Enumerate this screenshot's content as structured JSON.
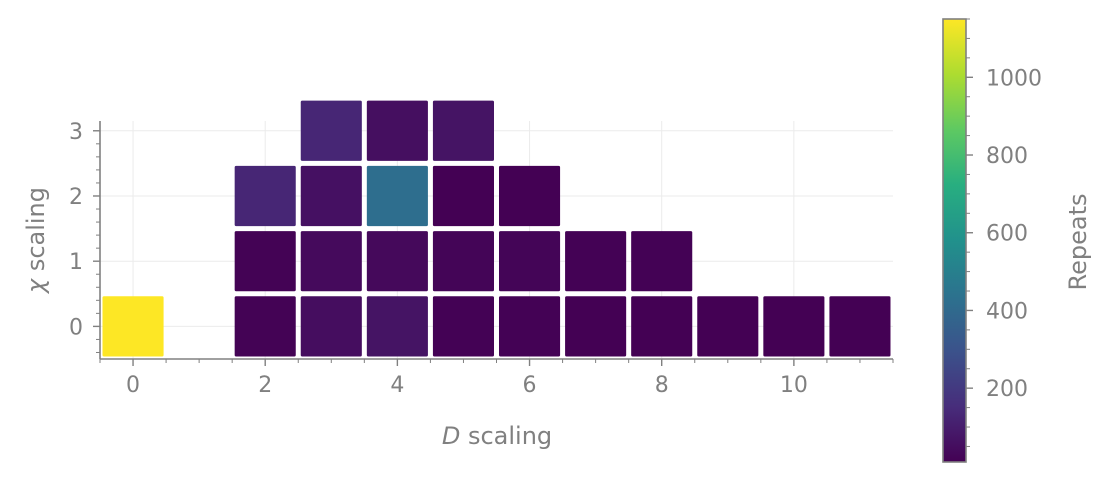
{
  "chart_data": {
    "type": "heatmap",
    "title": "",
    "xlabel_var": "D",
    "xlabel_rest": " scaling",
    "ylabel_var": "χ",
    "ylabel_rest": " scaling",
    "xlim": [
      -0.5,
      11.5
    ],
    "ylim": [
      -0.5,
      3.15
    ],
    "xticks": [
      "0",
      "2",
      "4",
      "6",
      "8",
      "10"
    ],
    "xtick_values": [
      0,
      2,
      4,
      6,
      8,
      10
    ],
    "yticks": [
      "0",
      "1",
      "2",
      "3"
    ],
    "ytick_values": [
      0,
      1,
      2,
      3
    ],
    "grid": true,
    "colormap": "viridis",
    "colorbar": {
      "label": "Repeats",
      "range": [
        10,
        1150
      ],
      "ticks": [
        "200",
        "400",
        "600",
        "800",
        "1000"
      ],
      "tick_values": [
        200,
        400,
        600,
        800,
        1000
      ],
      "placement": "right"
    },
    "cells": [
      {
        "x": 0,
        "y": 0,
        "value": 1150
      },
      {
        "x": 2,
        "y": 0,
        "value": 15
      },
      {
        "x": 3,
        "y": 0,
        "value": 50
      },
      {
        "x": 4,
        "y": 0,
        "value": 70
      },
      {
        "x": 5,
        "y": 0,
        "value": 12
      },
      {
        "x": 6,
        "y": 0,
        "value": 12
      },
      {
        "x": 7,
        "y": 0,
        "value": 10
      },
      {
        "x": 8,
        "y": 0,
        "value": 10
      },
      {
        "x": 9,
        "y": 0,
        "value": 10
      },
      {
        "x": 10,
        "y": 0,
        "value": 10
      },
      {
        "x": 11,
        "y": 0,
        "value": 10
      },
      {
        "x": 2,
        "y": 1,
        "value": 15
      },
      {
        "x": 3,
        "y": 1,
        "value": 40
      },
      {
        "x": 4,
        "y": 1,
        "value": 35
      },
      {
        "x": 5,
        "y": 1,
        "value": 22
      },
      {
        "x": 6,
        "y": 1,
        "value": 22
      },
      {
        "x": 7,
        "y": 1,
        "value": 12
      },
      {
        "x": 8,
        "y": 1,
        "value": 12
      },
      {
        "x": 2,
        "y": 2,
        "value": 130
      },
      {
        "x": 3,
        "y": 2,
        "value": 60
      },
      {
        "x": 4,
        "y": 2,
        "value": 420
      },
      {
        "x": 5,
        "y": 2,
        "value": 10
      },
      {
        "x": 6,
        "y": 2,
        "value": 10
      },
      {
        "x": 3,
        "y": 3,
        "value": 130
      },
      {
        "x": 4,
        "y": 3,
        "value": 55
      },
      {
        "x": 5,
        "y": 3,
        "value": 70
      }
    ]
  }
}
